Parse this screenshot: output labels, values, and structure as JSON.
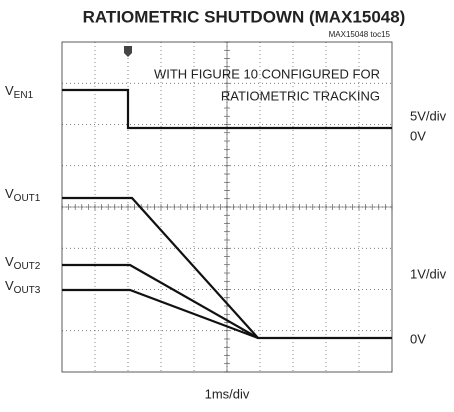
{
  "chart_data": {
    "type": "scope",
    "title": "RATIOMETRIC SHUTDOWN (MAX15048)",
    "subtitle": "MAX15048 toc15",
    "annotation": [
      "WITH FIGURE 10 CONFIGURED FOR",
      "RATIOMETRIC TRACKING"
    ],
    "x_label": "1ms/div",
    "channel_labels": [
      "VEN1",
      "VOUT1",
      "VOUT2",
      "VOUT3"
    ],
    "scale_labels": [
      "5V/div",
      "0V",
      "1V/div",
      "0V"
    ]
  }
}
